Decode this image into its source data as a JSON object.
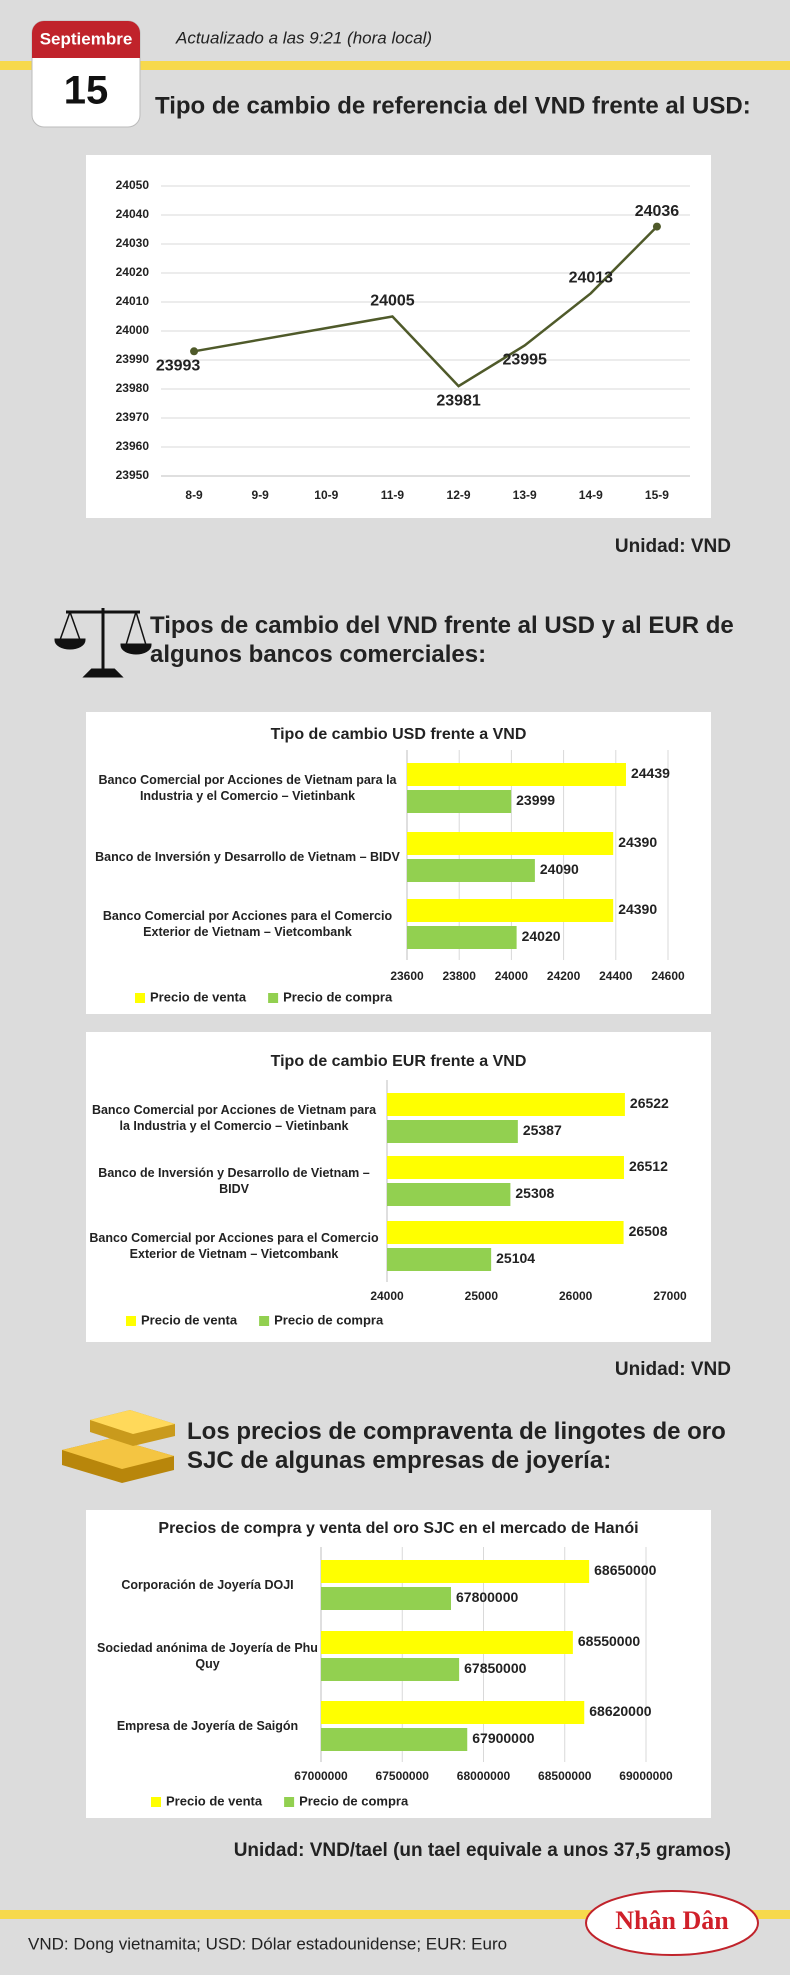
{
  "header": {
    "month": "Septiembre",
    "day": "15",
    "updated": "Actualizado a las 9:21 (hora local)"
  },
  "sections": [
    {
      "title": "Tipo de cambio de referencia del VND frente al USD:"
    },
    {
      "title": "Tipos de cambio del VND frente al USD y al EUR de algunos bancos comerciales:"
    },
    {
      "title": "Los precios de compraventa de lingotes de oro SJC de algunas empresas de joyería:"
    }
  ],
  "units": [
    "Unidad: VND",
    "Unidad: VND",
    "Unidad: VND/tael (un tael equivale a unos 37,5 gramos)"
  ],
  "footer": {
    "note": "VND: Dong vietnamita; USD: Dólar estadounidense; EUR: Euro",
    "logo": "Nhân Dân"
  },
  "chart_data": [
    {
      "type": "line",
      "categories": [
        "8-9",
        "9-9",
        "10-9",
        "11-9",
        "12-9",
        "13-9",
        "14-9",
        "15-9"
      ],
      "values": [
        23993,
        23997,
        24001,
        24005,
        23981,
        23995,
        24013,
        24036
      ],
      "value_labels": [
        "23993",
        null,
        null,
        "24005",
        "23981",
        "23995",
        "24013",
        "24036"
      ],
      "color": "#4f5a2a",
      "ylim": [
        23950,
        24050
      ],
      "yticks": [
        23950,
        23960,
        23970,
        23980,
        23990,
        24000,
        24010,
        24020,
        24030,
        24040,
        24050
      ],
      "grid": true
    },
    {
      "type": "barh",
      "title": "Tipo de cambio USD frente a VND",
      "categories": [
        "Banco Comercial por Acciones de Vietnam para la Industria y el Comercio – Vietinbank",
        "Banco de Inversión y Desarrollo de Vietnam – BIDV",
        "Banco Comercial por Acciones para el Comercio Exterior de Vietnam – Vietcombank"
      ],
      "series": [
        {
          "name": "Precio de venta",
          "color": "#ffff00",
          "values": [
            24439,
            24390,
            24390
          ]
        },
        {
          "name": "Precio de compra",
          "color": "#92d050",
          "values": [
            23999,
            24090,
            24020
          ]
        }
      ],
      "xlim": [
        23600,
        24600
      ],
      "xticks": [
        23600,
        23800,
        24000,
        24200,
        24400,
        24600
      ],
      "grid": true
    },
    {
      "type": "barh",
      "title": "Tipo de cambio EUR frente a VND",
      "categories": [
        "Banco Comercial por Acciones de Vietnam para la Industria y el Comercio – Vietinbank",
        "Banco de Inversión y Desarrollo de Vietnam – BIDV",
        "Banco Comercial por Acciones para el Comercio Exterior de Vietnam – Vietcombank"
      ],
      "series": [
        {
          "name": "Precio de venta",
          "color": "#ffff00",
          "values": [
            26522,
            26512,
            26508
          ]
        },
        {
          "name": "Precio de compra",
          "color": "#92d050",
          "values": [
            25387,
            25308,
            25104
          ]
        }
      ],
      "xlim": [
        24000,
        27000
      ],
      "xticks": [
        24000,
        25000,
        26000,
        27000
      ],
      "grid": false
    },
    {
      "type": "barh",
      "title": "Precios de compra y venta del oro SJC en el mercado de Hanói",
      "categories": [
        "Corporación de Joyería DOJI",
        "Sociedad anónima de Joyería de Phu Quy",
        "Empresa de Joyería de Saigón"
      ],
      "series": [
        {
          "name": "Precio de venta",
          "color": "#ffff00",
          "values": [
            68650000,
            68550000,
            68620000
          ]
        },
        {
          "name": "Precio de compra",
          "color": "#92d050",
          "values": [
            67800000,
            67850000,
            67900000
          ]
        }
      ],
      "xlim": [
        67000000,
        69000000
      ],
      "xticks": [
        67000000,
        67500000,
        68000000,
        68500000,
        69000000
      ],
      "grid": true
    }
  ]
}
